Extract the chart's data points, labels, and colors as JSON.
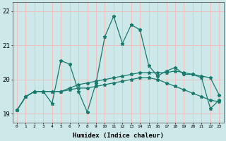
{
  "xlabel": "Humidex (Indice chaleur)",
  "bg_color": "#cce8e8",
  "grid_color_h": "#f0c0c0",
  "grid_color_v": "#f0c0c0",
  "line_color": "#1a7a6e",
  "xlim": [
    -0.5,
    23.5
  ],
  "ylim": [
    18.75,
    22.25
  ],
  "yticks": [
    19,
    20,
    21,
    22
  ],
  "xticks": [
    0,
    1,
    2,
    3,
    4,
    5,
    6,
    7,
    8,
    9,
    10,
    11,
    12,
    13,
    14,
    15,
    16,
    17,
    18,
    19,
    20,
    21,
    22,
    23
  ],
  "series_upper_x": [
    0,
    1,
    2,
    3,
    4,
    5,
    6,
    7,
    8,
    9,
    10,
    11,
    12,
    13,
    14,
    15,
    16,
    17,
    18,
    19,
    20,
    21,
    22,
    23
  ],
  "series_upper_y": [
    19.1,
    19.5,
    19.65,
    19.65,
    19.65,
    19.65,
    19.75,
    19.85,
    19.9,
    19.95,
    20.0,
    20.05,
    20.1,
    20.15,
    20.2,
    20.2,
    20.2,
    20.2,
    20.25,
    20.2,
    20.15,
    20.1,
    20.05,
    19.55
  ],
  "series_lower_x": [
    0,
    1,
    2,
    3,
    4,
    5,
    6,
    7,
    8,
    9,
    10,
    11,
    12,
    13,
    14,
    15,
    16,
    17,
    18,
    19,
    20,
    21,
    22,
    23
  ],
  "series_lower_y": [
    19.1,
    19.5,
    19.65,
    19.65,
    19.65,
    19.65,
    19.7,
    19.75,
    19.75,
    19.8,
    19.85,
    19.9,
    19.95,
    20.0,
    20.05,
    20.05,
    20.0,
    19.9,
    19.8,
    19.7,
    19.6,
    19.5,
    19.4,
    19.35
  ],
  "series_main_x": [
    0,
    1,
    2,
    3,
    4,
    5,
    6,
    7,
    8,
    9,
    10,
    11,
    12,
    13,
    14,
    15,
    16,
    17,
    18,
    19,
    20,
    21,
    22,
    23
  ],
  "series_main_y": [
    19.1,
    19.5,
    19.65,
    19.65,
    19.3,
    20.55,
    20.45,
    19.65,
    19.05,
    19.9,
    21.25,
    21.85,
    21.05,
    21.6,
    21.45,
    20.4,
    20.1,
    20.25,
    20.35,
    20.15,
    20.15,
    20.05,
    19.15,
    19.4
  ]
}
